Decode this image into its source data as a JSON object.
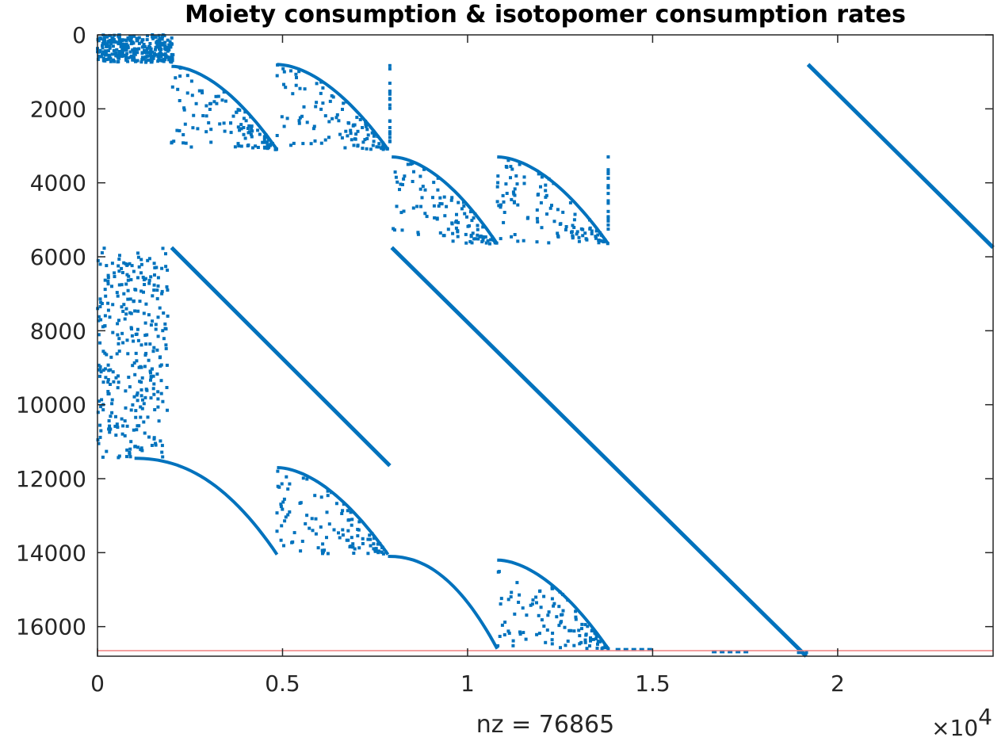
{
  "colors": {
    "marker": "#0072BD",
    "axis": "#262626",
    "refline": "#f08080",
    "background": "#ffffff"
  },
  "chart_data": {
    "type": "scatter",
    "title": "Moiety consumption & isotopomer consumption rates",
    "xlabel": "nz = 76865",
    "ylabel": "",
    "x_multiplier_label": "×10",
    "x_multiplier_exponent": "4",
    "xlim": [
      0,
      24200
    ],
    "ylim": [
      0,
      16800
    ],
    "y_reversed": true,
    "grid": false,
    "legend": "none",
    "x_ticks": [
      0,
      5000,
      10000,
      15000,
      20000
    ],
    "x_tick_labels": [
      "0",
      "0.5",
      "1",
      "1.5",
      "2"
    ],
    "y_ticks": [
      0,
      2000,
      4000,
      6000,
      8000,
      10000,
      12000,
      14000,
      16000
    ],
    "y_tick_labels": [
      "0",
      "2000",
      "4000",
      "6000",
      "8000",
      "10000",
      "12000",
      "14000",
      "16000"
    ],
    "reference_line_y": 16650,
    "diagonal_bands": [
      {
        "x": [
          19200,
          24200
        ],
        "y": [
          800,
          5750
        ]
      },
      {
        "x": [
          2000,
          7900
        ],
        "y": [
          5750,
          11650
        ]
      },
      {
        "x": [
          7950,
          19150
        ],
        "y": [
          5750,
          16800
        ]
      }
    ],
    "curve_bands": [
      {
        "x": [
          2000,
          4850
        ],
        "y": [
          850,
          3100
        ]
      },
      {
        "x": [
          4850,
          7850
        ],
        "y": [
          800,
          3100
        ]
      },
      {
        "x": [
          7950,
          10800
        ],
        "y": [
          3300,
          5650
        ]
      },
      {
        "x": [
          10800,
          13800
        ],
        "y": [
          3300,
          5650
        ]
      },
      {
        "x": [
          4850,
          7850
        ],
        "y": [
          11700,
          14050
        ]
      },
      {
        "x": [
          10800,
          13800
        ],
        "y": [
          14200,
          16600
        ]
      }
    ],
    "stair_bands": [
      {
        "x": [
          1000,
          4850
        ],
        "y": [
          11450,
          14050
        ]
      },
      {
        "x": [
          7850,
          10800
        ],
        "y": [
          14100,
          16600
        ]
      }
    ],
    "dense_blocks": [
      {
        "x": [
          0,
          2050
        ],
        "y": [
          0,
          750
        ]
      },
      {
        "x": [
          0,
          1900
        ],
        "y": [
          5750,
          11450
        ]
      }
    ],
    "vertical_clusters": [
      {
        "x": 7900,
        "y": [
          800,
          3000
        ]
      },
      {
        "x": 13800,
        "y": [
          3300,
          5300
        ]
      }
    ],
    "bottom_segments": [
      {
        "x": [
          14000,
          15000
        ],
        "y": 16620
      },
      {
        "x": [
          16600,
          17600
        ],
        "y": 16680
      },
      {
        "x": [
          18900,
          19200
        ],
        "y": 16700
      }
    ]
  }
}
